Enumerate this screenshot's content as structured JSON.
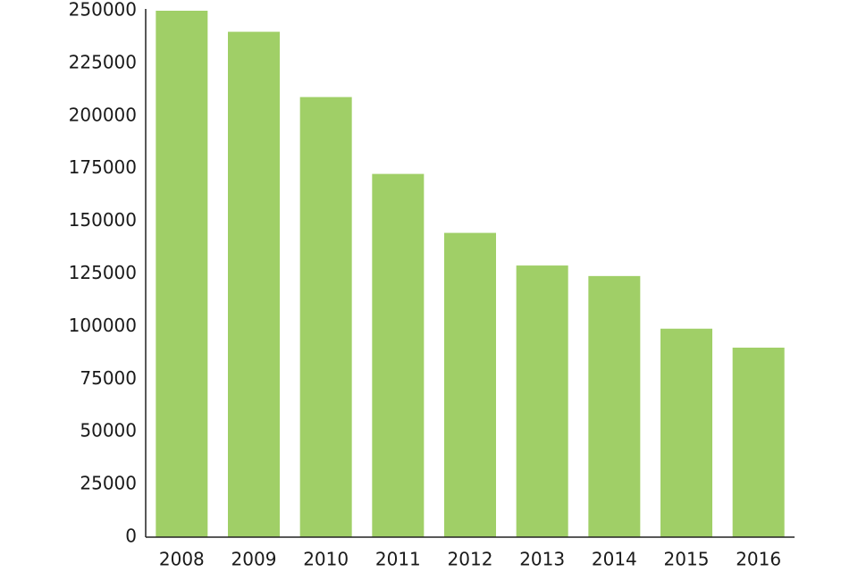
{
  "chart_data": {
    "type": "bar",
    "categories": [
      "2008",
      "2009",
      "2010",
      "2011",
      "2012",
      "2013",
      "2014",
      "2015",
      "2016"
    ],
    "values": [
      250000,
      240000,
      209000,
      172500,
      144500,
      129000,
      124000,
      99000,
      90000
    ],
    "color": "#a0cf67",
    "ylim": [
      0,
      250000
    ],
    "yticks": [
      0,
      25000,
      50000,
      75000,
      100000,
      125000,
      150000,
      175000,
      200000,
      225000,
      250000
    ],
    "grid": false
  }
}
